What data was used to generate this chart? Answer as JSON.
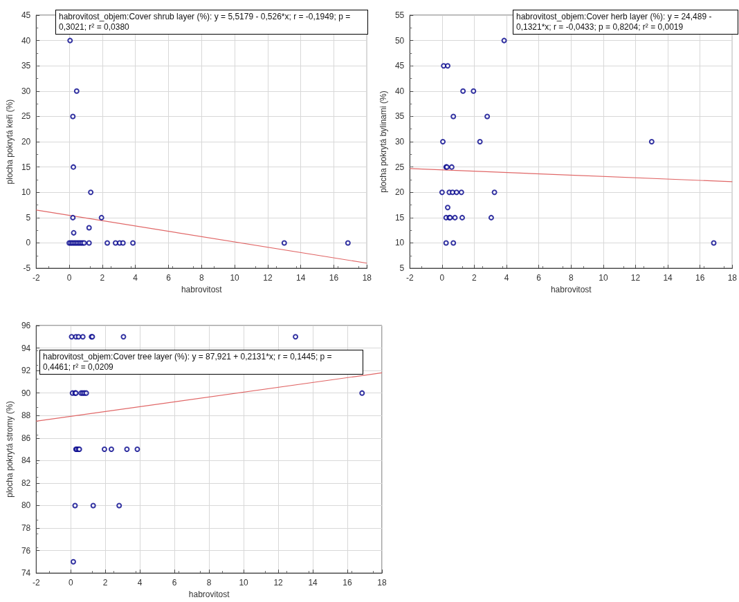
{
  "chart_data": [
    {
      "type": "scatter",
      "xlabel": "habrovitost",
      "ylabel": "plocha pokrytá keři (%)",
      "annotations": [
        "habrovitost_objem:Cover shrub layer (%):   y = 5,5179 - 0,526*x;  r = -0,1949; p = 0,3021; r² = 0,0380"
      ],
      "xlim": [
        -2,
        18
      ],
      "xticks": [
        -2,
        0,
        2,
        4,
        6,
        8,
        10,
        12,
        14,
        16,
        18
      ],
      "ylim": [
        -5,
        45
      ],
      "yticks": [
        -5,
        0,
        5,
        10,
        15,
        20,
        25,
        30,
        35,
        40,
        45
      ],
      "grid": true,
      "marker": "circle",
      "series": [
        {
          "color": "#00008b",
          "x": [
            0.05,
            0.45,
            0.22,
            0.25,
            1.3,
            0.22,
            1.95,
            1.2,
            0.27,
            0.0,
            0.1,
            0.2,
            0.3,
            0.4,
            0.5,
            0.6,
            0.7,
            0.8,
            0.9,
            1.2,
            2.3,
            2.8,
            3.05,
            3.25,
            3.85,
            13.0,
            16.85
          ],
          "values": [
            40,
            30,
            25,
            15,
            10,
            5,
            5,
            3,
            2,
            0,
            0,
            0,
            0,
            0,
            0,
            0,
            0,
            0,
            0,
            0,
            0,
            0,
            0,
            0,
            0,
            0,
            0
          ]
        },
        {
          "type": "line",
          "color": "#e06666",
          "marker": "none",
          "x": [
            -2,
            18
          ],
          "values": [
            6.5,
            -4
          ]
        }
      ]
    },
    {
      "type": "scatter",
      "xlabel": "habrovitost",
      "ylabel": "plocha pokrytá bylinami (%)",
      "annotations": [
        "habrovitost_objem:Cover herb layer (%):   y = 24,489 - 0,1321*x; r = -0,0433; p = 0,8204; r² = 0,0019"
      ],
      "xlim": [
        -2,
        18
      ],
      "xticks": [
        -2,
        0,
        2,
        4,
        6,
        8,
        10,
        12,
        14,
        16,
        18
      ],
      "ylim": [
        5,
        55
      ],
      "yticks": [
        5,
        10,
        15,
        20,
        25,
        30,
        35,
        40,
        45,
        50,
        55
      ],
      "grid": true,
      "marker": "circle",
      "series": [
        {
          "color": "#00008b",
          "x": [
            3.85,
            0.1,
            0.35,
            1.3,
            1.95,
            0.7,
            2.8,
            0.05,
            2.35,
            13.0,
            0.25,
            0.3,
            0.6,
            0.0,
            0.45,
            0.65,
            0.9,
            1.2,
            3.25,
            0.35,
            0.25,
            0.45,
            0.5,
            0.8,
            1.25,
            3.05,
            0.25,
            0.7,
            16.85
          ],
          "values": [
            50,
            45,
            45,
            40,
            40,
            35,
            35,
            30,
            30,
            30,
            25,
            25,
            25,
            20,
            20,
            20,
            20,
            20,
            20,
            17,
            15,
            15,
            15,
            15,
            15,
            15,
            10,
            10,
            10
          ]
        },
        {
          "type": "line",
          "color": "#e06666",
          "marker": "none",
          "x": [
            -2,
            18
          ],
          "values": [
            24.7,
            22.1
          ]
        }
      ]
    },
    {
      "type": "scatter",
      "xlabel": "habrovitost",
      "ylabel": "plocha pokrytá stromy (%)",
      "annotations": [
        "habrovitost_objem:Cover tree layer (%):   y = 87,921 + 0,2131*x;  r = 0,1445; p = 0,4461; r² = 0,0209"
      ],
      "xlim": [
        -2,
        18
      ],
      "xticks": [
        -2,
        0,
        2,
        4,
        6,
        8,
        10,
        12,
        14,
        16,
        18
      ],
      "ylim": [
        74,
        96
      ],
      "yticks": [
        74,
        76,
        78,
        80,
        82,
        84,
        86,
        88,
        90,
        92,
        94,
        96
      ],
      "grid": true,
      "marker": "circle",
      "series": [
        {
          "color": "#00008b",
          "x": [
            0.05,
            0.3,
            0.45,
            0.7,
            1.2,
            1.25,
            3.05,
            13.0,
            0.1,
            0.25,
            0.3,
            0.6,
            0.7,
            0.8,
            0.9,
            16.85,
            0.3,
            0.35,
            0.45,
            0.5,
            1.95,
            2.35,
            3.25,
            3.85,
            0.25,
            1.3,
            2.8,
            0.15
          ],
          "values": [
            95,
            95,
            95,
            95,
            95,
            95,
            95,
            95,
            90,
            90,
            90,
            90,
            90,
            90,
            90,
            90,
            85,
            85,
            85,
            85,
            85,
            85,
            85,
            85,
            80,
            80,
            80,
            75
          ]
        },
        {
          "type": "line",
          "color": "#e06666",
          "marker": "none",
          "x": [
            -2,
            18
          ],
          "values": [
            87.5,
            91.8
          ]
        }
      ]
    }
  ]
}
